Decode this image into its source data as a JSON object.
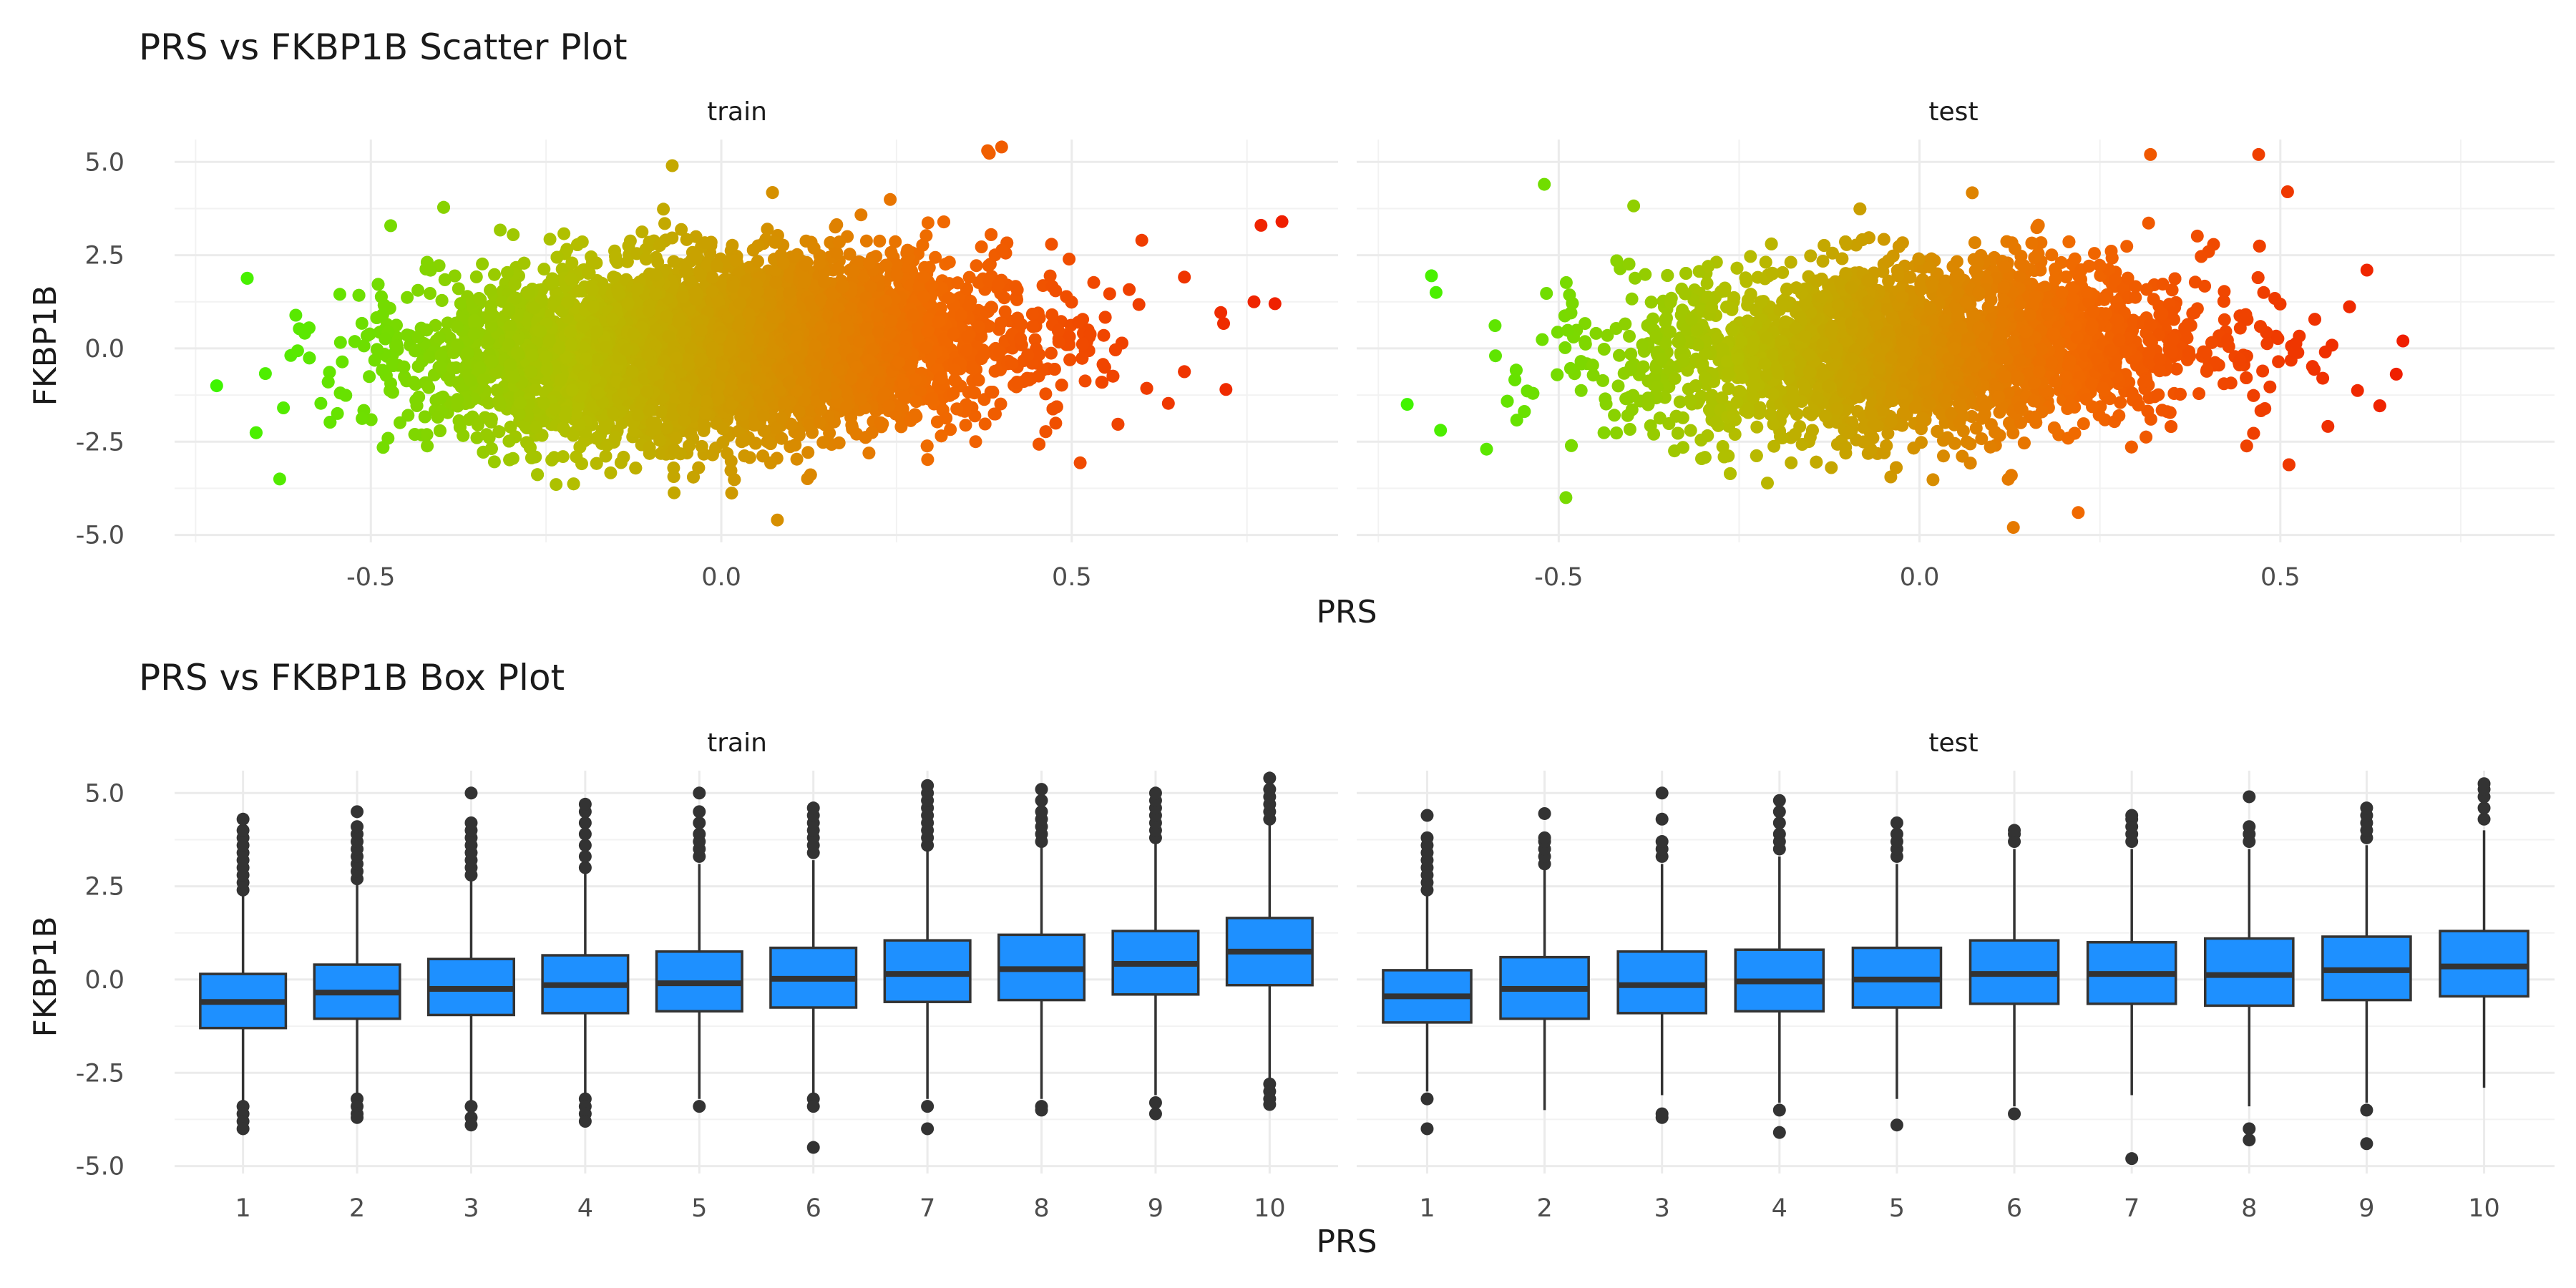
{
  "chart_data": [
    {
      "type": "scatter",
      "title": "PRS vs FKBP1B Scatter Plot",
      "xlabel": "PRS",
      "ylabel": "FKBP1B",
      "facets": [
        "train",
        "test"
      ],
      "xlim": [
        -0.78,
        0.88
      ],
      "ylim": [
        -5.2,
        5.6
      ],
      "x_ticks": [
        "-0.5",
        "0.0",
        "0.5"
      ],
      "x_tick_values": [
        -0.5,
        0.0,
        0.5
      ],
      "y_ticks": [
        "5.0",
        "2.5",
        "0.0",
        "-2.5",
        "-5.0"
      ],
      "y_tick_values": [
        5.0,
        2.5,
        0.0,
        -2.5,
        -5.0
      ],
      "grid": true,
      "color_gradient": [
        "#3ef500",
        "#b4be00",
        "#f06a00",
        "#ef1c00"
      ],
      "color_mapping": "PRS (green = low, red = high)",
      "panels": [
        {
          "facet": "train",
          "n_points_approx": 7000,
          "x_range": [
            -0.72,
            0.82
          ],
          "x_mean": 0.0,
          "x_sd": 0.2,
          "y_mean": 0.0,
          "y_sd": 1.15,
          "trend_slope": 0.8,
          "points": [
            {
              "x": 0.8,
              "y": 3.4
            },
            {
              "x": 0.77,
              "y": 3.3
            },
            {
              "x": 0.79,
              "y": 1.2
            },
            {
              "x": 0.76,
              "y": 1.25
            },
            {
              "x": 0.72,
              "y": -1.1
            },
            {
              "x": -0.72,
              "y": -1.0
            },
            {
              "x": -0.63,
              "y": -3.5
            },
            {
              "x": 0.08,
              "y": -4.6
            },
            {
              "x": 0.4,
              "y": 5.4
            },
            {
              "x": 0.38,
              "y": 5.3
            },
            {
              "x": -0.07,
              "y": 4.9
            },
            {
              "x": 0.6,
              "y": 2.9
            }
          ]
        },
        {
          "facet": "test",
          "n_points_approx": 3500,
          "x_range": [
            -0.72,
            0.68
          ],
          "x_mean": 0.0,
          "x_sd": 0.2,
          "y_mean": 0.0,
          "y_sd": 1.15,
          "trend_slope": 0.7,
          "points": [
            {
              "x": -0.71,
              "y": -1.5
            },
            {
              "x": -0.67,
              "y": 1.5
            },
            {
              "x": -0.49,
              "y": -4.0
            },
            {
              "x": -0.52,
              "y": 4.4
            },
            {
              "x": 0.67,
              "y": 0.2
            },
            {
              "x": 0.13,
              "y": -4.8
            },
            {
              "x": 0.32,
              "y": 5.2
            },
            {
              "x": 0.47,
              "y": 5.2
            },
            {
              "x": 0.51,
              "y": 4.2
            },
            {
              "x": 0.22,
              "y": -4.4
            },
            {
              "x": -0.6,
              "y": -2.7
            },
            {
              "x": 0.62,
              "y": 2.1
            }
          ]
        }
      ]
    },
    {
      "type": "box",
      "title": "PRS vs FKBP1B Box Plot",
      "xlabel": "PRS",
      "ylabel": "FKBP1B",
      "facets": [
        "train",
        "test"
      ],
      "categories": [
        "1",
        "2",
        "3",
        "4",
        "5",
        "6",
        "7",
        "8",
        "9",
        "10"
      ],
      "ylim": [
        -5.2,
        5.6
      ],
      "y_ticks": [
        "5.0",
        "2.5",
        "0.0",
        "-2.5",
        "-5.0"
      ],
      "y_tick_values": [
        5.0,
        2.5,
        0.0,
        -2.5,
        -5.0
      ],
      "box_color": "#1e90ff",
      "grid": true,
      "panels": [
        {
          "facet": "train",
          "boxes": [
            {
              "q1": -1.3,
              "median": -0.6,
              "q3": 0.15,
              "lower": -3.3,
              "upper": 2.3,
              "outliers_high": [
                2.4,
                2.6,
                2.8,
                3.0,
                3.2,
                3.4,
                3.6,
                3.8,
                4.0,
                4.3
              ],
              "outliers_low": [
                -3.4,
                -3.6,
                -3.8,
                -4.0
              ]
            },
            {
              "q1": -1.05,
              "median": -0.35,
              "q3": 0.4,
              "lower": -3.1,
              "upper": 2.6,
              "outliers_high": [
                2.7,
                2.9,
                3.1,
                3.3,
                3.5,
                3.7,
                3.9,
                4.1,
                4.5
              ],
              "outliers_low": [
                -3.2,
                -3.4,
                -3.6,
                -3.7
              ]
            },
            {
              "q1": -0.95,
              "median": -0.25,
              "q3": 0.55,
              "lower": -3.3,
              "upper": 2.7,
              "outliers_high": [
                2.8,
                3.0,
                3.2,
                3.4,
                3.6,
                3.8,
                4.0,
                4.2,
                5.0
              ],
              "outliers_low": [
                -3.4,
                -3.7,
                -3.9
              ]
            },
            {
              "q1": -0.9,
              "median": -0.15,
              "q3": 0.65,
              "lower": -3.1,
              "upper": 2.9,
              "outliers_high": [
                3.0,
                3.3,
                3.6,
                3.9,
                4.2,
                4.5,
                4.7
              ],
              "outliers_low": [
                -3.2,
                -3.4,
                -3.6,
                -3.8
              ]
            },
            {
              "q1": -0.85,
              "median": -0.1,
              "q3": 0.75,
              "lower": -3.2,
              "upper": 3.1,
              "outliers_high": [
                3.3,
                3.5,
                3.7,
                3.9,
                4.2,
                4.5,
                5.0
              ],
              "outliers_low": [
                -3.4
              ]
            },
            {
              "q1": -0.75,
              "median": 0.02,
              "q3": 0.85,
              "lower": -3.1,
              "upper": 3.2,
              "outliers_high": [
                3.4,
                3.6,
                3.8,
                4.0,
                4.2,
                4.4,
                4.6
              ],
              "outliers_low": [
                -3.2,
                -3.4,
                -4.5
              ]
            },
            {
              "q1": -0.6,
              "median": 0.15,
              "q3": 1.05,
              "lower": -3.2,
              "upper": 3.5,
              "outliers_high": [
                3.6,
                3.8,
                4.0,
                4.2,
                4.4,
                4.6,
                4.8,
                5.0,
                5.2
              ],
              "outliers_low": [
                -3.4,
                -4.0
              ]
            },
            {
              "q1": -0.55,
              "median": 0.28,
              "q3": 1.2,
              "lower": -3.2,
              "upper": 3.6,
              "outliers_high": [
                3.7,
                3.9,
                4.1,
                4.3,
                4.5,
                4.8,
                5.1
              ],
              "outliers_low": [
                -3.4,
                -3.5
              ]
            },
            {
              "q1": -0.4,
              "median": 0.42,
              "q3": 1.3,
              "lower": -3.1,
              "upper": 3.7,
              "outliers_high": [
                3.8,
                4.0,
                4.2,
                4.4,
                4.6,
                4.8,
                5.0
              ],
              "outliers_low": [
                -3.3,
                -3.6
              ]
            },
            {
              "q1": -0.15,
              "median": 0.75,
              "q3": 1.65,
              "lower": -2.7,
              "upper": 4.2,
              "outliers_high": [
                4.3,
                4.5,
                4.7,
                4.9,
                5.1,
                5.4
              ],
              "outliers_low": [
                -2.8,
                -3.0,
                -3.2,
                -3.35
              ]
            }
          ]
        },
        {
          "facet": "test",
          "boxes": [
            {
              "q1": -1.15,
              "median": -0.45,
              "q3": 0.25,
              "lower": -3.0,
              "upper": 2.3,
              "outliers_high": [
                2.4,
                2.6,
                2.8,
                3.0,
                3.2,
                3.4,
                3.6,
                3.8,
                4.4
              ],
              "outliers_low": [
                -3.2,
                -4.0
              ]
            },
            {
              "q1": -1.05,
              "median": -0.25,
              "q3": 0.6,
              "lower": -3.5,
              "upper": 3.0,
              "outliers_high": [
                3.1,
                3.3,
                3.5,
                3.7,
                3.8,
                4.45
              ],
              "outliers_low": []
            },
            {
              "q1": -0.9,
              "median": -0.15,
              "q3": 0.75,
              "lower": -3.1,
              "upper": 3.1,
              "outliers_high": [
                3.3,
                3.5,
                3.7,
                4.3,
                5.0
              ],
              "outliers_low": [
                -3.6,
                -3.7
              ]
            },
            {
              "q1": -0.85,
              "median": -0.05,
              "q3": 0.8,
              "lower": -3.3,
              "upper": 3.3,
              "outliers_high": [
                3.5,
                3.7,
                3.9,
                4.2,
                4.5,
                4.8
              ],
              "outliers_low": [
                -3.5,
                -4.1
              ]
            },
            {
              "q1": -0.75,
              "median": 0.0,
              "q3": 0.85,
              "lower": -3.2,
              "upper": 3.1,
              "outliers_high": [
                3.3,
                3.5,
                3.7,
                3.9,
                4.2
              ],
              "outliers_low": [
                -3.9
              ]
            },
            {
              "q1": -0.65,
              "median": 0.15,
              "q3": 1.05,
              "lower": -3.4,
              "upper": 3.5,
              "outliers_high": [
                3.7,
                3.9,
                4.0
              ],
              "outliers_low": [
                -3.6
              ]
            },
            {
              "q1": -0.65,
              "median": 0.15,
              "q3": 1.0,
              "lower": -3.1,
              "upper": 3.5,
              "outliers_high": [
                3.7,
                3.9,
                4.1,
                4.3,
                4.4
              ],
              "outliers_low": [
                -4.8
              ]
            },
            {
              "q1": -0.7,
              "median": 0.12,
              "q3": 1.1,
              "lower": -3.4,
              "upper": 3.5,
              "outliers_high": [
                3.7,
                3.9,
                4.1,
                4.9
              ],
              "outliers_low": [
                -4.0,
                -4.3
              ]
            },
            {
              "q1": -0.55,
              "median": 0.25,
              "q3": 1.15,
              "lower": -3.3,
              "upper": 3.6,
              "outliers_high": [
                3.8,
                4.0,
                4.2,
                4.4,
                4.6
              ],
              "outliers_low": [
                -3.5,
                -4.4
              ]
            },
            {
              "q1": -0.45,
              "median": 0.35,
              "q3": 1.3,
              "lower": -2.9,
              "upper": 4.0,
              "outliers_high": [
                4.3,
                4.6,
                4.9,
                5.1,
                5.25
              ],
              "outliers_low": []
            }
          ]
        }
      ]
    }
  ]
}
